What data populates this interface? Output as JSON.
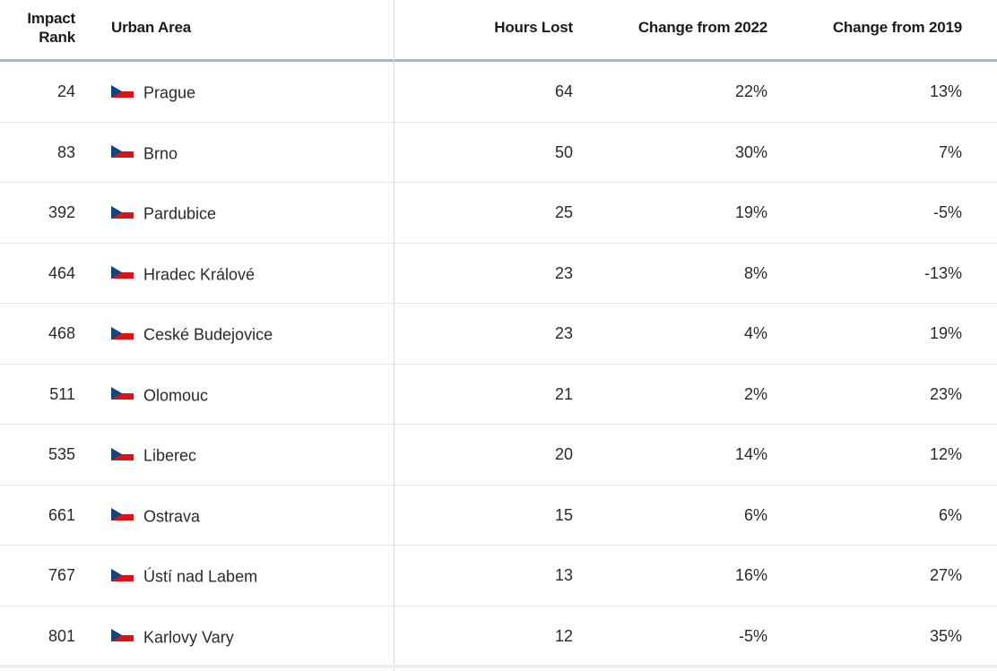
{
  "table": {
    "headers": {
      "rank_line1": "Impact",
      "rank_line2": "Rank",
      "area": "Urban Area",
      "hours": "Hours Lost",
      "change_2022": "Change from 2022",
      "change_2019": "Change from 2019"
    },
    "flag_icon": "czech-flag-icon",
    "colors": {
      "flag_white": "#ffffff",
      "flag_red": "#d7141a",
      "flag_blue": "#11457e",
      "header_rule": "#a9b7c2"
    },
    "rows": [
      {
        "rank": "24",
        "area": "Prague",
        "hours": "64",
        "change_2022": "22%",
        "change_2019": "13%"
      },
      {
        "rank": "83",
        "area": "Brno",
        "hours": "50",
        "change_2022": "30%",
        "change_2019": "7%"
      },
      {
        "rank": "392",
        "area": "Pardubice",
        "hours": "25",
        "change_2022": "19%",
        "change_2019": "-5%"
      },
      {
        "rank": "464",
        "area": "Hradec Králové",
        "hours": "23",
        "change_2022": "8%",
        "change_2019": "-13%"
      },
      {
        "rank": "468",
        "area": "Ceské Budejovice",
        "hours": "23",
        "change_2022": "4%",
        "change_2019": "19%"
      },
      {
        "rank": "511",
        "area": "Olomouc",
        "hours": "21",
        "change_2022": "2%",
        "change_2019": "23%"
      },
      {
        "rank": "535",
        "area": "Liberec",
        "hours": "20",
        "change_2022": "14%",
        "change_2019": "12%"
      },
      {
        "rank": "661",
        "area": "Ostrava",
        "hours": "15",
        "change_2022": "6%",
        "change_2019": "6%"
      },
      {
        "rank": "767",
        "area": "Ústí nad Labem",
        "hours": "13",
        "change_2022": "16%",
        "change_2019": "27%"
      },
      {
        "rank": "801",
        "area": "Karlovy Vary",
        "hours": "12",
        "change_2022": "-5%",
        "change_2019": "35%"
      }
    ]
  }
}
